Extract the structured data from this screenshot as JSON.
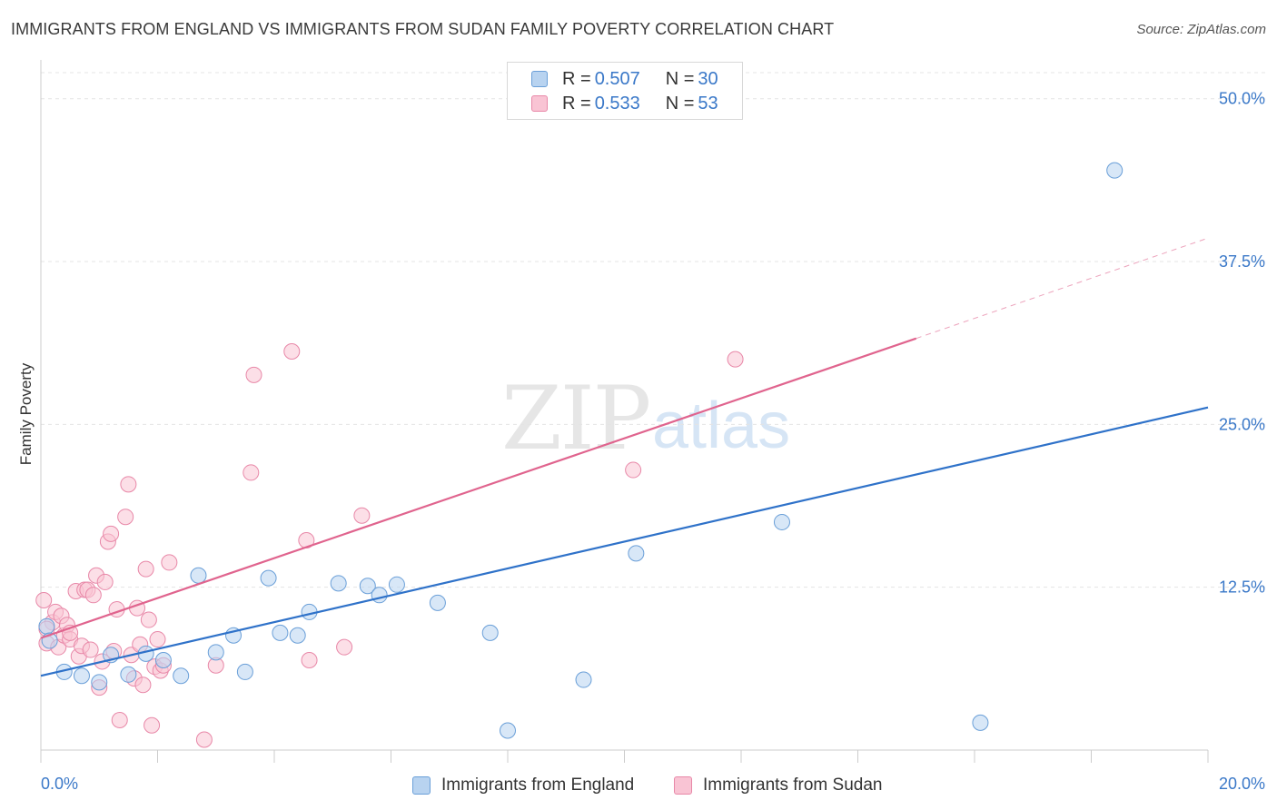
{
  "title": "IMMIGRANTS FROM ENGLAND VS IMMIGRANTS FROM SUDAN FAMILY POVERTY CORRELATION CHART",
  "source": "Source: ZipAtlas.com",
  "watermark": {
    "zip": "ZIP",
    "atlas": "atlas"
  },
  "legend": {
    "england": {
      "r_label": "R = ",
      "r_value": "0.507",
      "n_label": "N = ",
      "n_value": "30"
    },
    "sudan": {
      "r_label": "R = ",
      "r_value": "0.533",
      "n_label": "N = ",
      "n_value": "53"
    }
  },
  "colors": {
    "england_fill": "#b8d3f0",
    "england_stroke": "#6a9fd8",
    "england_line": "#2f72c9",
    "sudan_fill": "#f9c4d4",
    "sudan_stroke": "#e888a8",
    "sudan_line": "#e0648e",
    "axis_text": "#3a78c8"
  },
  "chart_data": {
    "type": "scatter",
    "title": "IMMIGRANTS FROM ENGLAND VS IMMIGRANTS FROM SUDAN FAMILY POVERTY CORRELATION CHART",
    "xlabel": "",
    "ylabel": "Family Poverty",
    "xlim": [
      0,
      20
    ],
    "ylim": [
      0,
      52
    ],
    "x_tick_labels": [
      "0.0%",
      "20.0%"
    ],
    "y_ticks": [
      12.5,
      25.0,
      37.5,
      50.0
    ],
    "y_tick_labels": [
      "12.5%",
      "25.0%",
      "37.5%",
      "50.0%"
    ],
    "legend_position": "top-center",
    "series": [
      {
        "name": "Immigrants from England",
        "points": [
          [
            0.1,
            9.5
          ],
          [
            0.4,
            6.0
          ],
          [
            0.7,
            5.7
          ],
          [
            1.0,
            5.2
          ],
          [
            1.2,
            7.3
          ],
          [
            1.5,
            5.8
          ],
          [
            1.8,
            7.4
          ],
          [
            2.1,
            6.9
          ],
          [
            2.4,
            5.7
          ],
          [
            2.7,
            13.4
          ],
          [
            3.0,
            7.5
          ],
          [
            3.3,
            8.8
          ],
          [
            3.5,
            6.0
          ],
          [
            3.9,
            13.2
          ],
          [
            4.1,
            9.0
          ],
          [
            4.4,
            8.8
          ],
          [
            4.6,
            10.6
          ],
          [
            5.1,
            12.8
          ],
          [
            5.6,
            12.6
          ],
          [
            5.8,
            11.9
          ],
          [
            6.1,
            12.7
          ],
          [
            6.8,
            11.3
          ],
          [
            7.7,
            9.0
          ],
          [
            8.0,
            1.5
          ],
          [
            9.3,
            5.4
          ],
          [
            10.2,
            15.1
          ],
          [
            12.7,
            17.5
          ],
          [
            16.1,
            2.1
          ],
          [
            18.4,
            44.5
          ],
          [
            0.15,
            8.4
          ]
        ],
        "trendline": {
          "x": [
            0,
            20
          ],
          "y": [
            5.7,
            26.3
          ],
          "dashed_from": null
        }
      },
      {
        "name": "Immigrants from Sudan",
        "points": [
          [
            0.05,
            11.5
          ],
          [
            0.1,
            8.2
          ],
          [
            0.2,
            9.8
          ],
          [
            0.25,
            10.6
          ],
          [
            0.3,
            7.9
          ],
          [
            0.35,
            10.3
          ],
          [
            0.4,
            8.8
          ],
          [
            0.45,
            9.6
          ],
          [
            0.5,
            8.5
          ],
          [
            0.6,
            12.2
          ],
          [
            0.65,
            7.2
          ],
          [
            0.7,
            8.0
          ],
          [
            0.75,
            12.3
          ],
          [
            0.8,
            12.3
          ],
          [
            0.85,
            7.7
          ],
          [
            0.9,
            11.9
          ],
          [
            0.95,
            13.4
          ],
          [
            1.0,
            4.8
          ],
          [
            1.05,
            6.8
          ],
          [
            1.1,
            12.9
          ],
          [
            1.15,
            16.0
          ],
          [
            1.2,
            16.6
          ],
          [
            1.25,
            7.6
          ],
          [
            1.3,
            10.8
          ],
          [
            1.35,
            2.3
          ],
          [
            1.45,
            17.9
          ],
          [
            1.5,
            20.4
          ],
          [
            1.55,
            7.3
          ],
          [
            1.6,
            5.5
          ],
          [
            1.65,
            10.9
          ],
          [
            1.7,
            8.1
          ],
          [
            1.75,
            5.0
          ],
          [
            1.8,
            13.9
          ],
          [
            1.85,
            10.0
          ],
          [
            1.9,
            1.9
          ],
          [
            1.95,
            6.4
          ],
          [
            2.0,
            8.5
          ],
          [
            2.05,
            6.1
          ],
          [
            2.1,
            6.5
          ],
          [
            2.2,
            14.4
          ],
          [
            2.8,
            0.8
          ],
          [
            3.0,
            6.5
          ],
          [
            3.6,
            21.3
          ],
          [
            3.65,
            28.8
          ],
          [
            4.3,
            30.6
          ],
          [
            4.55,
            16.1
          ],
          [
            4.6,
            6.9
          ],
          [
            5.2,
            7.9
          ],
          [
            5.5,
            18.0
          ],
          [
            10.15,
            21.5
          ],
          [
            11.9,
            30.0
          ],
          [
            0.1,
            9.3
          ],
          [
            0.5,
            9.0
          ]
        ],
        "trendline": {
          "x": [
            0,
            15,
            20
          ],
          "y": [
            8.6,
            31.6,
            39.3
          ],
          "dashed_from": 15
        }
      }
    ]
  }
}
